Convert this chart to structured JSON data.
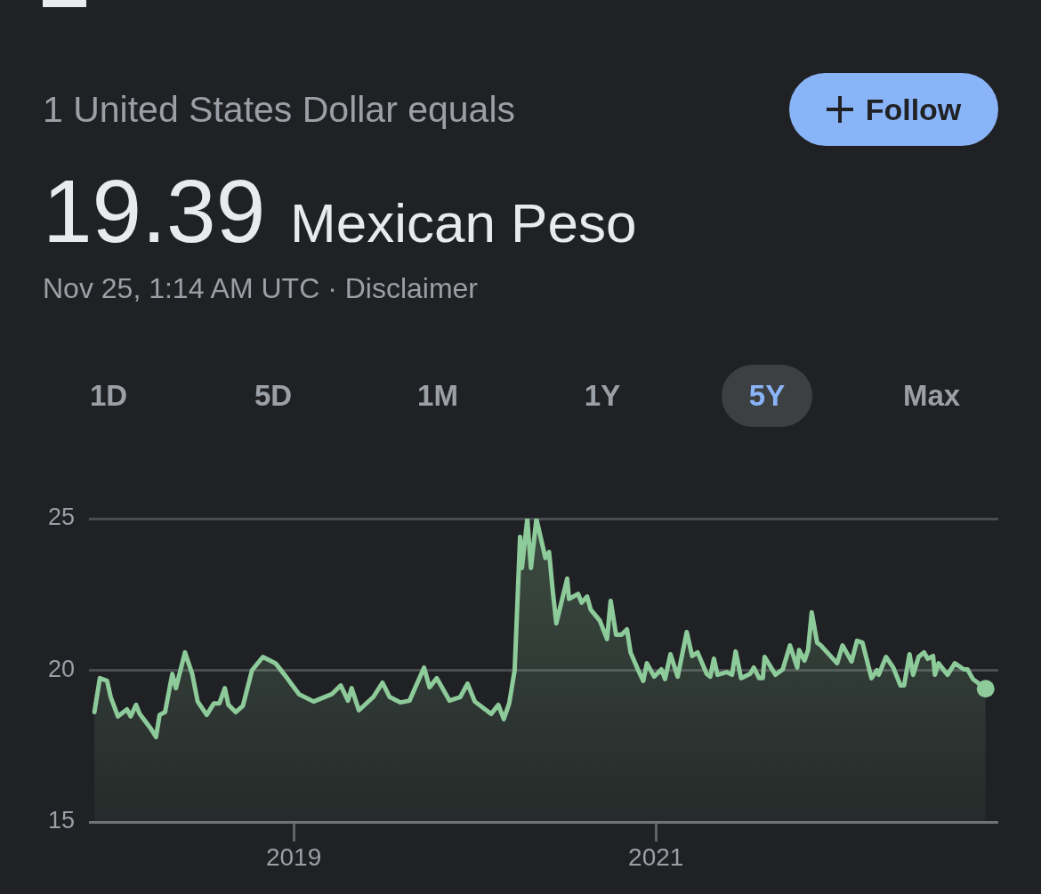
{
  "chart_data": {
    "type": "area",
    "title": "1 United States Dollar equals",
    "subtitle": "19.39 Mexican Peso",
    "annotations": [
      "Nov 25, 1:14 AM UTC · Disclaimer",
      "Follow",
      "1D",
      "5D",
      "1M",
      "1Y",
      "5Y",
      "Max"
    ],
    "x": [
      2017.9,
      2017.93,
      2017.97,
      2017.99,
      2018.03,
      2018.08,
      2018.1,
      2018.13,
      2018.15,
      2018.21,
      2018.24,
      2018.26,
      2018.29,
      2018.33,
      2018.35,
      2018.4,
      2018.44,
      2018.47,
      2018.52,
      2018.56,
      2018.59,
      2018.62,
      2018.64,
      2018.68,
      2018.72,
      2018.77,
      2018.83,
      2018.9,
      2018.95,
      2019.03,
      2019.11,
      2019.21,
      2019.26,
      2019.3,
      2019.32,
      2019.36,
      2019.44,
      2019.49,
      2019.53,
      2019.59,
      2019.64,
      2019.67,
      2019.72,
      2019.75,
      2019.79,
      2019.86,
      2019.92,
      2019.96,
      2020.0,
      2020.09,
      2020.13,
      2020.16,
      2020.19,
      2020.22,
      2020.25,
      2020.26,
      2020.29,
      2020.31,
      2020.34,
      2020.39,
      2020.41,
      2020.43,
      2020.45,
      2020.51,
      2020.52,
      2020.57,
      2020.59,
      2020.62,
      2020.64,
      2020.69,
      2020.73,
      2020.75,
      2020.78,
      2020.81,
      2020.84,
      2020.86,
      2020.9,
      2020.93,
      2020.95,
      2020.99,
      2021.03,
      2021.05,
      2021.08,
      2021.12,
      2021.17,
      2021.2,
      2021.23,
      2021.28,
      2021.3,
      2021.32,
      2021.34,
      2021.39,
      2021.42,
      2021.44,
      2021.47,
      2021.52,
      2021.54,
      2021.57,
      2021.59,
      2021.6,
      2021.66,
      2021.7,
      2021.74,
      2021.78,
      2021.79,
      2021.82,
      2021.84,
      2021.86,
      2021.89,
      2021.91,
      2022.0,
      2022.03,
      2022.08,
      2022.11,
      2022.14,
      2022.19,
      2022.22,
      2022.23,
      2022.27,
      2022.31,
      2022.35,
      2022.37,
      2022.4,
      2022.42,
      2022.45,
      2022.48,
      2022.5,
      2022.53,
      2022.54,
      2022.56,
      2022.61,
      2022.65,
      2022.7,
      2022.72,
      2022.75,
      2022.82
    ],
    "series": [
      {
        "color": "#8ecb9a",
        "values": [
          18.62,
          19.74,
          19.65,
          19.12,
          18.48,
          18.71,
          18.48,
          18.86,
          18.56,
          18.09,
          17.8,
          18.53,
          18.62,
          19.88,
          19.41,
          20.59,
          19.88,
          18.97,
          18.53,
          18.91,
          18.91,
          19.41,
          18.86,
          18.62,
          18.83,
          20.0,
          20.44,
          20.23,
          19.85,
          19.21,
          18.97,
          19.21,
          19.5,
          19.0,
          19.41,
          18.68,
          19.12,
          19.59,
          19.12,
          18.94,
          19.0,
          19.41,
          20.09,
          19.44,
          19.74,
          19.0,
          19.12,
          19.56,
          18.97,
          18.56,
          18.86,
          18.39,
          18.91,
          20.0,
          24.4,
          23.37,
          24.99,
          23.37,
          24.99,
          23.7,
          23.9,
          22.64,
          21.55,
          23.02,
          22.35,
          22.52,
          22.23,
          22.43,
          22.0,
          21.64,
          21.03,
          22.29,
          21.17,
          21.17,
          21.35,
          20.59,
          20.03,
          19.65,
          20.23,
          19.79,
          20.03,
          19.71,
          20.53,
          19.79,
          21.26,
          20.47,
          20.59,
          19.88,
          19.79,
          20.38,
          19.85,
          19.94,
          19.85,
          20.62,
          19.74,
          19.88,
          20.09,
          19.74,
          19.74,
          20.44,
          19.85,
          20.03,
          20.82,
          20.09,
          20.67,
          20.32,
          20.67,
          21.91,
          20.91,
          20.82,
          20.23,
          20.82,
          20.29,
          20.97,
          20.91,
          19.74,
          20.0,
          19.85,
          20.44,
          20.09,
          19.5,
          19.5,
          20.53,
          19.85,
          20.44,
          20.59,
          20.38,
          20.47,
          19.85,
          20.23,
          19.85,
          20.23,
          20.03,
          20.03,
          19.71,
          19.39
        ]
      }
    ],
    "xlim": [
      2017.87,
      2022.89
    ],
    "xticks": [
      2019,
      2021
    ],
    "ylim": [
      15,
      25
    ],
    "yticks": [
      15,
      20,
      25
    ],
    "grid": "y",
    "legend": false,
    "marker": "none",
    "line_style": "solid"
  }
}
